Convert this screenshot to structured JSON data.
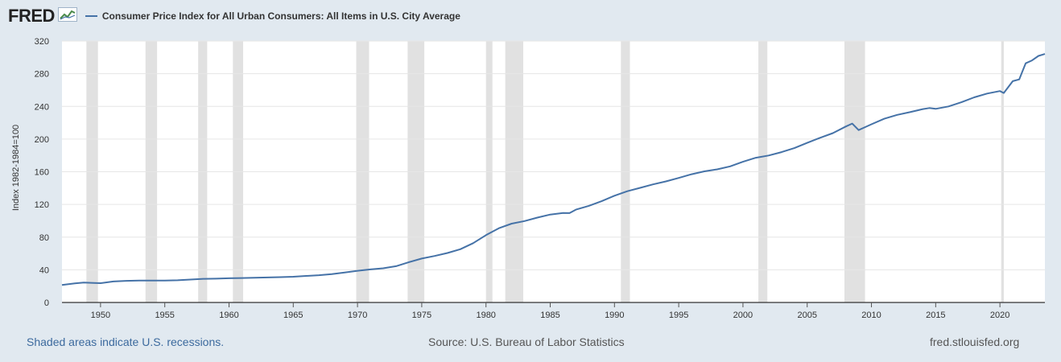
{
  "header": {
    "logo_text": "FRED",
    "series_title": "Consumer Price Index for All Urban Consumers: All Items in U.S. City Average"
  },
  "footer": {
    "recession_note": "Shaded areas indicate U.S. recessions.",
    "source": "Source: U.S. Bureau of Labor Statistics",
    "site": "fred.stlouisfed.org"
  },
  "colors": {
    "series": "#4572a7",
    "recession": "#e1e1e1",
    "background": "#e1e9f0",
    "plot_background": "#ffffff",
    "grid": "#e6e6e6"
  },
  "chart_data": {
    "type": "line",
    "title": "Consumer Price Index for All Urban Consumers: All Items in U.S. City Average",
    "ylabel": "Index 1982-1984=100",
    "xlabel": "",
    "xlim": [
      1947.0,
      2023.5
    ],
    "ylim": [
      0,
      320
    ],
    "x_ticks": [
      1950,
      1955,
      1960,
      1965,
      1970,
      1975,
      1980,
      1985,
      1990,
      1995,
      2000,
      2005,
      2010,
      2015,
      2020
    ],
    "y_ticks": [
      0,
      40,
      80,
      120,
      160,
      200,
      240,
      280,
      320
    ],
    "grid": true,
    "legend": "top-left",
    "recessions": [
      [
        1948.9,
        1949.8
      ],
      [
        1953.5,
        1954.4
      ],
      [
        1957.6,
        1958.3
      ],
      [
        1960.3,
        1961.1
      ],
      [
        1969.9,
        1970.9
      ],
      [
        1973.9,
        1975.2
      ],
      [
        1980.0,
        1980.5
      ],
      [
        1981.5,
        1982.9
      ],
      [
        1990.5,
        1991.2
      ],
      [
        2001.2,
        2001.9
      ],
      [
        2007.9,
        2009.5
      ],
      [
        2020.1,
        2020.3
      ]
    ],
    "series": [
      {
        "name": "Consumer Price Index for All Urban Consumers: All Items in U.S. City Average",
        "x": [
          1947.0,
          1948.0,
          1948.7,
          1949.5,
          1950.0,
          1951.0,
          1952.0,
          1953.0,
          1954.0,
          1955.0,
          1956.0,
          1957.0,
          1958.0,
          1959.0,
          1960.0,
          1961.0,
          1962.0,
          1963.0,
          1964.0,
          1965.0,
          1966.0,
          1967.0,
          1968.0,
          1969.0,
          1970.0,
          1971.0,
          1972.0,
          1973.0,
          1974.0,
          1975.0,
          1976.0,
          1977.0,
          1978.0,
          1979.0,
          1980.0,
          1981.0,
          1982.0,
          1983.0,
          1984.0,
          1985.0,
          1986.0,
          1986.5,
          1987.0,
          1988.0,
          1989.0,
          1990.0,
          1991.0,
          1992.0,
          1993.0,
          1994.0,
          1995.0,
          1996.0,
          1997.0,
          1998.0,
          1999.0,
          2000.0,
          2001.0,
          2002.0,
          2003.0,
          2004.0,
          2005.0,
          2006.0,
          2007.0,
          2008.0,
          2008.5,
          2009.0,
          2009.5,
          2010.0,
          2011.0,
          2012.0,
          2013.0,
          2014.0,
          2014.5,
          2015.0,
          2016.0,
          2017.0,
          2018.0,
          2019.0,
          2020.0,
          2020.3,
          2021.0,
          2021.5,
          2022.0,
          2022.5,
          2023.0,
          2023.5
        ],
        "values": [
          21.5,
          23.4,
          24.4,
          23.8,
          23.6,
          25.7,
          26.5,
          26.8,
          26.9,
          26.8,
          27.2,
          28.1,
          28.9,
          29.1,
          29.6,
          29.9,
          30.3,
          30.6,
          31.0,
          31.5,
          32.5,
          33.4,
          34.8,
          36.7,
          38.8,
          40.5,
          41.8,
          44.4,
          49.3,
          53.8,
          56.9,
          60.6,
          65.2,
          72.6,
          82.4,
          90.9,
          96.5,
          99.6,
          103.9,
          107.6,
          109.6,
          109.4,
          113.6,
          118.3,
          124.0,
          130.7,
          136.2,
          140.3,
          144.5,
          148.2,
          152.4,
          156.9,
          160.5,
          163.0,
          166.6,
          172.2,
          177.1,
          179.9,
          184.0,
          188.9,
          195.3,
          201.6,
          207.3,
          215.3,
          219.0,
          211.0,
          214.5,
          218.1,
          224.9,
          229.6,
          233.0,
          236.7,
          238.0,
          237.0,
          240.0,
          245.1,
          251.1,
          255.7,
          258.8,
          256.4,
          270.9,
          273.0,
          292.7,
          296.3,
          301.8,
          304.1
        ]
      }
    ]
  }
}
